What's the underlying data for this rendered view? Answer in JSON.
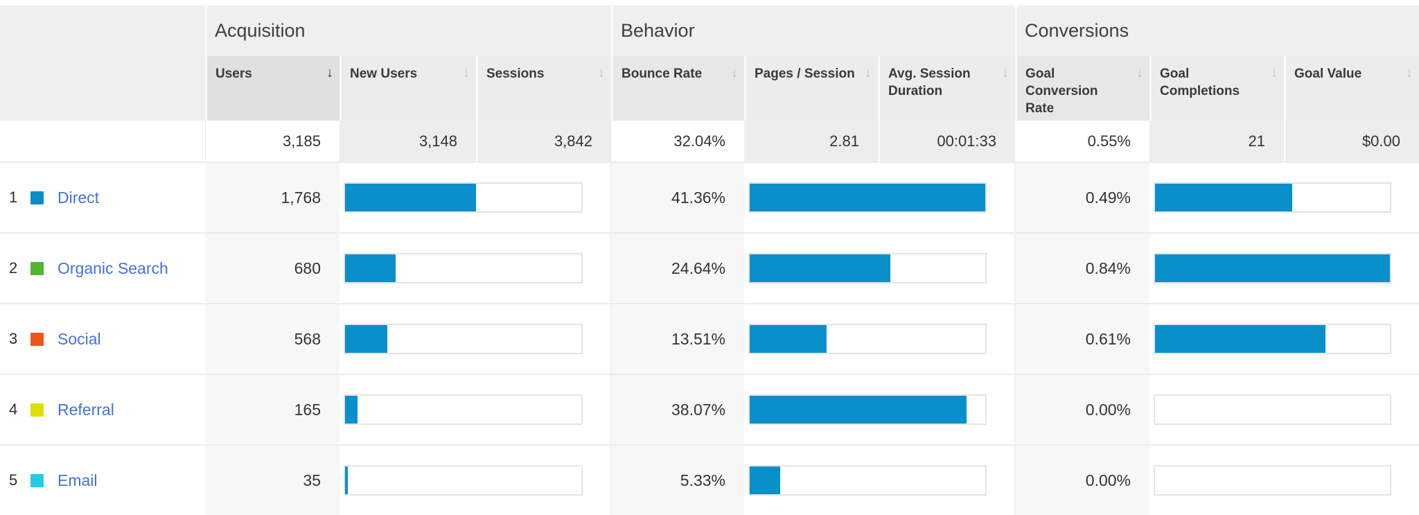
{
  "colors": {
    "bar": "#0990ca",
    "link": "#4272db",
    "channel_direct": "#058dc7",
    "channel_organic": "#50b432",
    "channel_social": "#ed561b",
    "channel_referral": "#dddf00",
    "channel_email": "#24cbe5"
  },
  "sort_arrow": "↓",
  "groups": [
    {
      "label": "Acquisition"
    },
    {
      "label": "Behavior"
    },
    {
      "label": "Conversions"
    }
  ],
  "columns": [
    {
      "label": "Users"
    },
    {
      "label": "New Users"
    },
    {
      "label": "Sessions"
    },
    {
      "label": "Bounce Rate"
    },
    {
      "label": "Pages / Session"
    },
    {
      "label": "Avg. Session Duration"
    },
    {
      "label": "Goal Conversion Rate"
    },
    {
      "label": "Goal Completions"
    },
    {
      "label": "Goal Value"
    }
  ],
  "summary": {
    "users": "3,185",
    "new_users": "3,148",
    "sessions": "3,842",
    "bounce_rate": "32.04%",
    "pages_session": "2.81",
    "avg_session_duration": "00:01:33",
    "goal_conversion_rate": "0.55%",
    "goal_completions": "21",
    "goal_value": "$0.00"
  },
  "rows": [
    {
      "rank": "1",
      "channel": "Direct",
      "color": "#058dc7",
      "users": "1,768",
      "users_bar_pct": 55.5,
      "bounce_rate": "41.36%",
      "bounce_bar_pct": 100,
      "goal_rate": "0.49%",
      "goal_bar_pct": 58.3
    },
    {
      "rank": "2",
      "channel": "Organic Search",
      "color": "#50b432",
      "users": "680",
      "users_bar_pct": 21.4,
      "bounce_rate": "24.64%",
      "bounce_bar_pct": 59.6,
      "goal_rate": "0.84%",
      "goal_bar_pct": 100
    },
    {
      "rank": "3",
      "channel": "Social",
      "color": "#ed561b",
      "users": "568",
      "users_bar_pct": 17.8,
      "bounce_rate": "13.51%",
      "bounce_bar_pct": 32.7,
      "goal_rate": "0.61%",
      "goal_bar_pct": 72.6
    },
    {
      "rank": "4",
      "channel": "Referral",
      "color": "#dddf00",
      "users": "165",
      "users_bar_pct": 5.2,
      "bounce_rate": "38.07%",
      "bounce_bar_pct": 92.0,
      "goal_rate": "0.00%",
      "goal_bar_pct": 0
    },
    {
      "rank": "5",
      "channel": "Email",
      "color": "#24cbe5",
      "users": "35",
      "users_bar_pct": 1.1,
      "bounce_rate": "5.33%",
      "bounce_bar_pct": 12.9,
      "goal_rate": "0.00%",
      "goal_bar_pct": 0
    }
  ]
}
